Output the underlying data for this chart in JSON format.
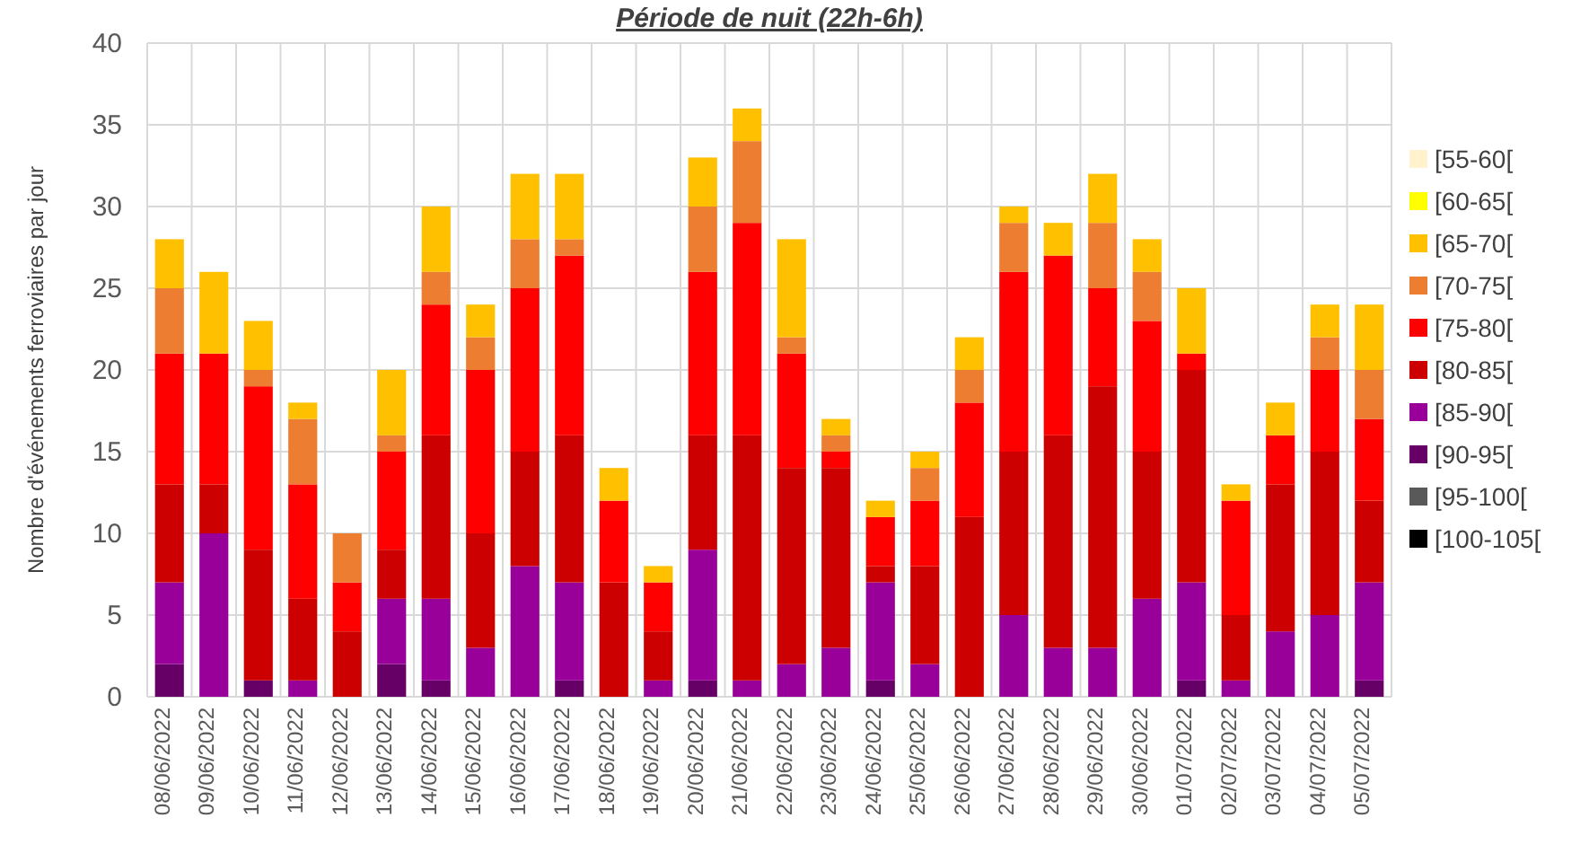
{
  "chart_data": {
    "type": "bar",
    "title": "Période de nuit (22h-6h)",
    "ylabel": "Nombre d'événements ferroviaires par jour",
    "categories": [
      "08/06/2022",
      "09/06/2022",
      "10/06/2022",
      "11/06/2022",
      "12/06/2022",
      "13/06/2022",
      "14/06/2022",
      "15/06/2022",
      "16/06/2022",
      "17/06/2022",
      "18/06/2022",
      "19/06/2022",
      "20/06/2022",
      "21/06/2022",
      "22/06/2022",
      "23/06/2022",
      "24/06/2022",
      "25/06/2022",
      "26/06/2022",
      "27/06/2022",
      "28/06/2022",
      "29/06/2022",
      "30/06/2022",
      "01/07/2022",
      "02/07/2022",
      "03/07/2022",
      "04/07/2022",
      "05/07/2022"
    ],
    "stacked": true,
    "ylim": [
      0,
      40
    ],
    "yticks": [
      0,
      5,
      10,
      15,
      20,
      25,
      30,
      35,
      40
    ],
    "grid": true,
    "legend": "right",
    "series": [
      {
        "name": "[100-105[",
        "color": "#000000",
        "values": [
          0,
          0,
          0,
          0,
          0,
          0,
          0,
          0,
          0,
          0,
          0,
          0,
          0,
          0,
          0,
          0,
          0,
          0,
          0,
          0,
          0,
          0,
          0,
          0,
          0,
          0,
          0,
          0
        ]
      },
      {
        "name": "[95-100[",
        "color": "#595959",
        "values": [
          0,
          0,
          0,
          0,
          0,
          0,
          0,
          0,
          0,
          0,
          0,
          0,
          0,
          0,
          0,
          0,
          0,
          0,
          0,
          0,
          0,
          0,
          0,
          0,
          0,
          0,
          0,
          0
        ]
      },
      {
        "name": "[90-95[",
        "color": "#660066",
        "values": [
          2,
          0,
          1,
          0,
          0,
          2,
          1,
          0,
          0,
          1,
          0,
          0,
          1,
          0,
          0,
          0,
          1,
          0,
          0,
          0,
          0,
          0,
          0,
          1,
          0,
          0,
          0,
          1
        ]
      },
      {
        "name": "[85-90[",
        "color": "#990099",
        "values": [
          5,
          10,
          0,
          1,
          0,
          4,
          5,
          3,
          8,
          6,
          0,
          1,
          8,
          1,
          2,
          3,
          6,
          2,
          0,
          5,
          3,
          3,
          6,
          6,
          1,
          4,
          5,
          6
        ]
      },
      {
        "name": "[80-85[",
        "color": "#cc0000",
        "values": [
          6,
          3,
          8,
          5,
          4,
          3,
          10,
          7,
          7,
          9,
          7,
          3,
          7,
          15,
          12,
          11,
          1,
          6,
          11,
          10,
          13,
          16,
          9,
          13,
          4,
          9,
          10,
          5
        ]
      },
      {
        "name": "[75-80[",
        "color": "#ff0000",
        "values": [
          8,
          8,
          10,
          7,
          3,
          6,
          8,
          10,
          10,
          11,
          5,
          3,
          10,
          13,
          7,
          1,
          3,
          4,
          7,
          11,
          11,
          6,
          8,
          1,
          7,
          3,
          5,
          5
        ]
      },
      {
        "name": "[70-75[",
        "color": "#ed7d31",
        "values": [
          4,
          0,
          1,
          4,
          3,
          1,
          2,
          2,
          3,
          1,
          0,
          0,
          4,
          5,
          1,
          1,
          0,
          2,
          2,
          3,
          0,
          4,
          3,
          0,
          0,
          0,
          2,
          3
        ]
      },
      {
        "name": "[65-70[",
        "color": "#ffc000",
        "values": [
          3,
          5,
          3,
          1,
          0,
          4,
          4,
          2,
          4,
          4,
          2,
          1,
          3,
          2,
          6,
          1,
          1,
          1,
          2,
          1,
          2,
          3,
          2,
          4,
          1,
          2,
          2,
          4
        ]
      },
      {
        "name": "[60-65[",
        "color": "#ffff00",
        "values": [
          0,
          0,
          0,
          0,
          0,
          0,
          0,
          0,
          0,
          0,
          0,
          0,
          0,
          0,
          0,
          0,
          0,
          0,
          0,
          0,
          0,
          0,
          0,
          0,
          0,
          0,
          0,
          0
        ]
      },
      {
        "name": "[55-60[",
        "color": "#fff2cc",
        "values": [
          0,
          0,
          0,
          0,
          0,
          0,
          0,
          0,
          0,
          0,
          0,
          0,
          0,
          0,
          0,
          0,
          0,
          0,
          0,
          0,
          0,
          0,
          0,
          0,
          0,
          0,
          0,
          0
        ]
      }
    ]
  }
}
